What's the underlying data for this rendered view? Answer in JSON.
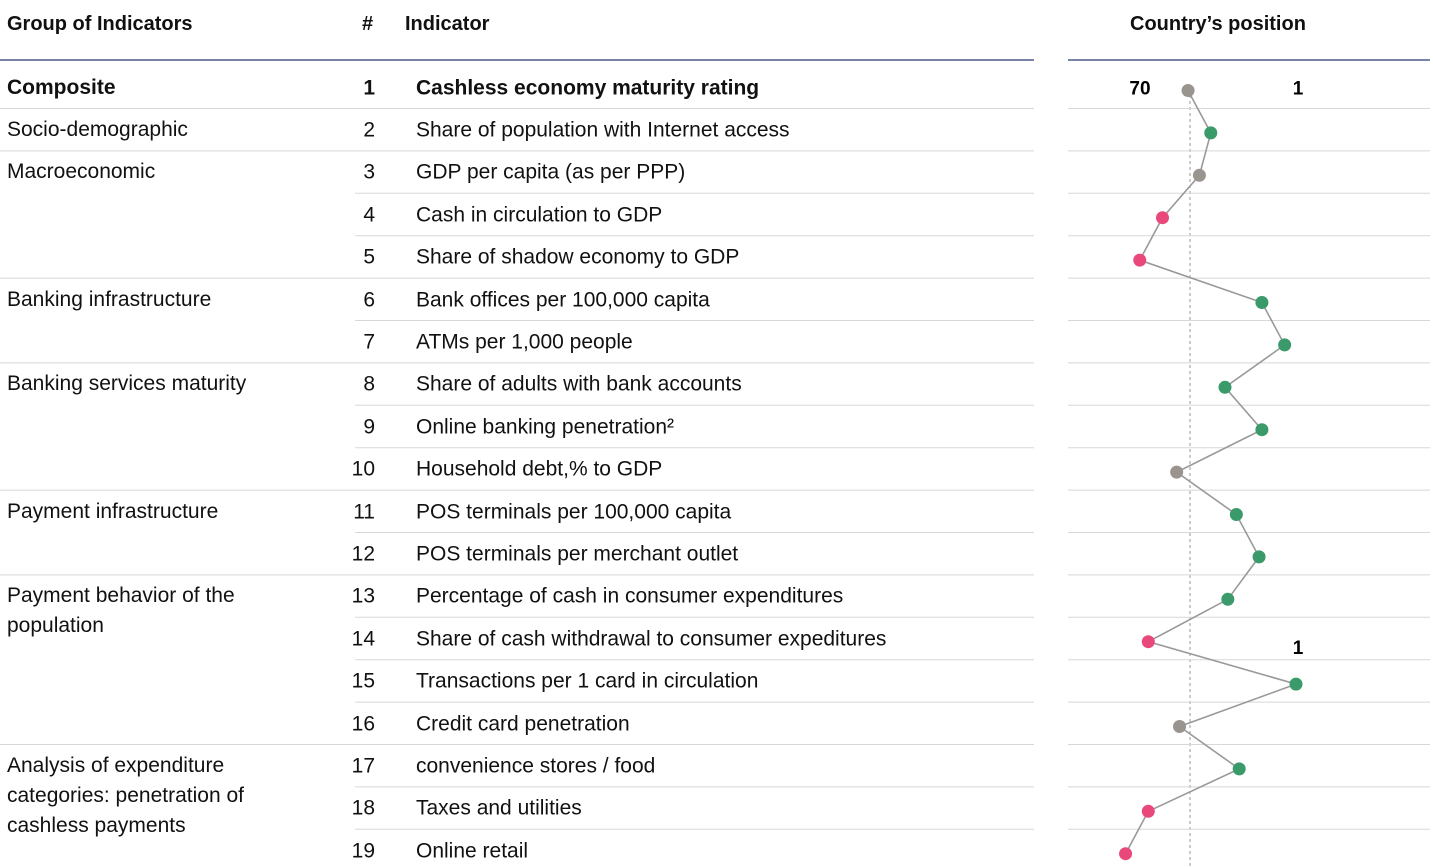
{
  "headers": {
    "group": "Group of Indicators",
    "number": "#",
    "indicator": "Indicator",
    "position": "Country’s position"
  },
  "chart_data": {
    "type": "dot-rank",
    "xlim": [
      70,
      1
    ],
    "xticks": [
      70,
      1
    ],
    "groups": [
      {
        "name": "Composite",
        "rows": [
          {
            "number": 1,
            "indicator": "Cashless economy maturity rating"
          }
        ]
      },
      {
        "name": "Socio-demographic",
        "rows": [
          {
            "number": 2,
            "indicator": "Share of population with Internet access"
          }
        ]
      },
      {
        "name": "Macroeconomic",
        "rows": [
          {
            "number": 3,
            "indicator": "GDP per capita (as per PPP)"
          },
          {
            "number": 4,
            "indicator": "Cash in circulation to GDP"
          },
          {
            "number": 5,
            "indicator": "Share of shadow economy to GDP"
          }
        ]
      },
      {
        "name": "Banking infrastructure",
        "rows": [
          {
            "number": 6,
            "indicator": "Bank offices per 100,000 capita"
          },
          {
            "number": 7,
            "indicator": "ATMs per 1,000 people"
          }
        ]
      },
      {
        "name": "Banking services maturity",
        "rows": [
          {
            "number": 8,
            "indicator": "Share of adults with bank accounts"
          },
          {
            "number": 9,
            "indicator": "Online banking penetration²"
          },
          {
            "number": 10,
            "indicator": "Household debt,% to GDP"
          }
        ]
      },
      {
        "name": "Payment infrastructure",
        "rows": [
          {
            "number": 11,
            "indicator": "POS terminals per 100,000 capita"
          },
          {
            "number": 12,
            "indicator": "POS terminals per merchant outlet"
          }
        ]
      },
      {
        "name": "Payment behavior of the population",
        "rows": [
          {
            "number": 13,
            "indicator": "Percentage of cash in consumer expenditures"
          },
          {
            "number": 14,
            "indicator": "Share of cash withdrawal to consumer expeditures"
          },
          {
            "number": 15,
            "indicator": "Transactions per 1 card in circulation"
          },
          {
            "number": 16,
            "indicator": "Credit card penetration"
          }
        ]
      },
      {
        "name": "Analysis of expenditure categories: penetration of cashless payments",
        "rows": [
          {
            "number": 17,
            "indicator": "convenience stores / food"
          },
          {
            "number": 18,
            "indicator": "Taxes and utilities"
          },
          {
            "number": 19,
            "indicator": "Online retail"
          }
        ]
      }
    ],
    "values": [
      39,
      31,
      35,
      48,
      56,
      13,
      5,
      26,
      13,
      43,
      22,
      14,
      25,
      53,
      1,
      42,
      21,
      53,
      61
    ],
    "colors": [
      "#9a948f",
      "#3a9a6a",
      "#9a948f",
      "#e8487a",
      "#e8487a",
      "#3a9a6a",
      "#3a9a6a",
      "#3a9a6a",
      "#3a9a6a",
      "#9a948f",
      "#3a9a6a",
      "#3a9a6a",
      "#3a9a6a",
      "#e8487a",
      "#3a9a6a",
      "#9a948f",
      "#3a9a6a",
      "#e8487a",
      "#e8487a"
    ],
    "value_labels": [
      null,
      null,
      null,
      null,
      null,
      null,
      null,
      null,
      null,
      null,
      null,
      null,
      null,
      null,
      "1",
      null,
      null,
      null,
      null
    ]
  }
}
